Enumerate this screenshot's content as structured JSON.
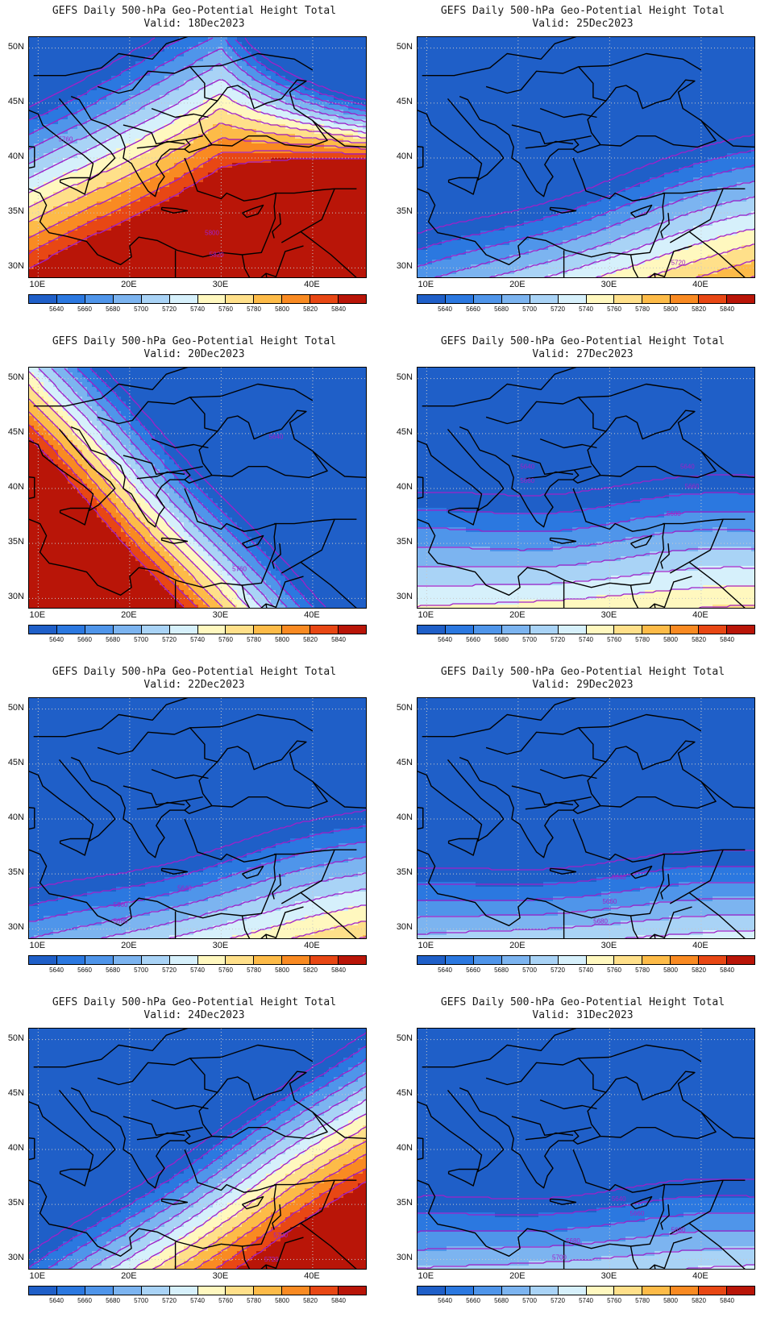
{
  "title_line1": "GEFS Daily 500-hPa Geo-Potential Height Total",
  "lat_labels": [
    "50N",
    "45N",
    "40N",
    "35N",
    "30N"
  ],
  "lon_labels": [
    "10E",
    "20E",
    "30E",
    "40E"
  ],
  "colorbar": {
    "levels": [
      "5640",
      "5660",
      "5680",
      "5700",
      "5720",
      "5740",
      "5760",
      "5780",
      "5800",
      "5820",
      "5840"
    ],
    "colors": [
      "#1f5fc8",
      "#2b78e0",
      "#4f95ea",
      "#7cb4f0",
      "#a9d3f6",
      "#d6f0fb",
      "#fff8bf",
      "#ffe08a",
      "#fdbb48",
      "#f98a22",
      "#e84714",
      "#b91508"
    ]
  },
  "contour_color": "#a020c8",
  "panels": [
    {
      "valid": "Valid: 18Dec2023",
      "field": {
        "center_lat": 39,
        "center_lon": 22,
        "tilt": 0.45,
        "base": 5790,
        "gradient": -15,
        "east_drop": 18,
        "north_boost": 0
      },
      "contour_labels": [
        {
          "text": "5760",
          "lon": 13,
          "lat": 41.5
        },
        {
          "text": "5800",
          "lon": 29,
          "lat": 33
        },
        {
          "text": "5820",
          "lon": 29.5,
          "lat": 31
        }
      ]
    },
    {
      "valid": "Valid: 25Dec2023",
      "field": {
        "center_lat": 34,
        "center_lon": 25,
        "tilt": 0.25,
        "base": 5660,
        "gradient": -14,
        "east_drop": 0,
        "north_boost": 0
      },
      "contour_labels": [
        {
          "text": "5720",
          "lon": 37.5,
          "lat": 30.3
        }
      ]
    },
    {
      "valid": "Valid: 20Dec2023",
      "field": {
        "center_lat": 35,
        "center_lon": 30,
        "tilt": -0.9,
        "base": 5690,
        "gradient": -16,
        "east_drop": 0,
        "north_boost": 0
      },
      "contour_labels": [
        {
          "text": "5640",
          "lon": 36,
          "lat": 44.5
        },
        {
          "text": "5760",
          "lon": 32,
          "lat": 32.5
        }
      ]
    },
    {
      "valid": "Valid: 27Dec2023",
      "field": {
        "center_lat": 35,
        "center_lon": 25,
        "tilt": 0.05,
        "base": 5680,
        "gradient": -12,
        "east_drop": 0,
        "north_boost": 0
      },
      "contour_labels": [
        {
          "text": "5640",
          "lon": 21,
          "lat": 41.8
        },
        {
          "text": "5660",
          "lon": 21,
          "lat": 40.5
        },
        {
          "text": "5640",
          "lon": 38.5,
          "lat": 41.8
        },
        {
          "text": "5660",
          "lon": 39,
          "lat": 40
        },
        {
          "text": "5680",
          "lon": 37,
          "lat": 37.5
        }
      ]
    },
    {
      "valid": "Valid: 22Dec2023",
      "field": {
        "center_lat": 31,
        "center_lon": 26,
        "tilt": 0.2,
        "base": 5700,
        "gradient": -14,
        "east_drop": 0,
        "north_boost": 0
      },
      "contour_labels": [
        {
          "text": "5640",
          "lon": 26,
          "lat": 33.5
        },
        {
          "text": "5660",
          "lon": 19,
          "lat": 32
        },
        {
          "text": "5680",
          "lon": 19,
          "lat": 30.5
        }
      ]
    },
    {
      "valid": "Valid: 29Dec2023",
      "field": {
        "center_lat": 31,
        "center_lon": 26,
        "tilt": 0.05,
        "base": 5690,
        "gradient": -14,
        "east_drop": 0,
        "north_boost": 0
      },
      "contour_labels": [
        {
          "text": "5640",
          "lon": 31,
          "lat": 34.5
        },
        {
          "text": "5660",
          "lon": 30,
          "lat": 32.3
        },
        {
          "text": "5680",
          "lon": 29,
          "lat": 30.5
        }
      ]
    },
    {
      "valid": "Valid: 24Dec2023",
      "field": {
        "center_lat": 33,
        "center_lon": 25,
        "tilt": 0.55,
        "base": 5720,
        "gradient": -16,
        "east_drop": 0,
        "north_boost": 0
      },
      "contour_labels": [
        {
          "text": "5700",
          "lon": 36.5,
          "lat": 32
        },
        {
          "text": "5720",
          "lon": 35.5,
          "lat": 29.8
        }
      ]
    },
    {
      "valid": "Valid: 31Dec2023",
      "field": {
        "center_lat": 30,
        "center_lon": 26,
        "tilt": 0.05,
        "base": 5700,
        "gradient": -13,
        "east_drop": 0,
        "north_boost": 0
      },
      "contour_labels": [
        {
          "text": "5640",
          "lon": 31,
          "lat": 35.3
        },
        {
          "text": "5660",
          "lon": 33,
          "lat": 34
        },
        {
          "text": "5680",
          "lon": 37.5,
          "lat": 32.5
        },
        {
          "text": "5680",
          "lon": 26,
          "lat": 31.5
        },
        {
          "text": "5700",
          "lon": 24.5,
          "lat": 30
        }
      ]
    }
  ]
}
